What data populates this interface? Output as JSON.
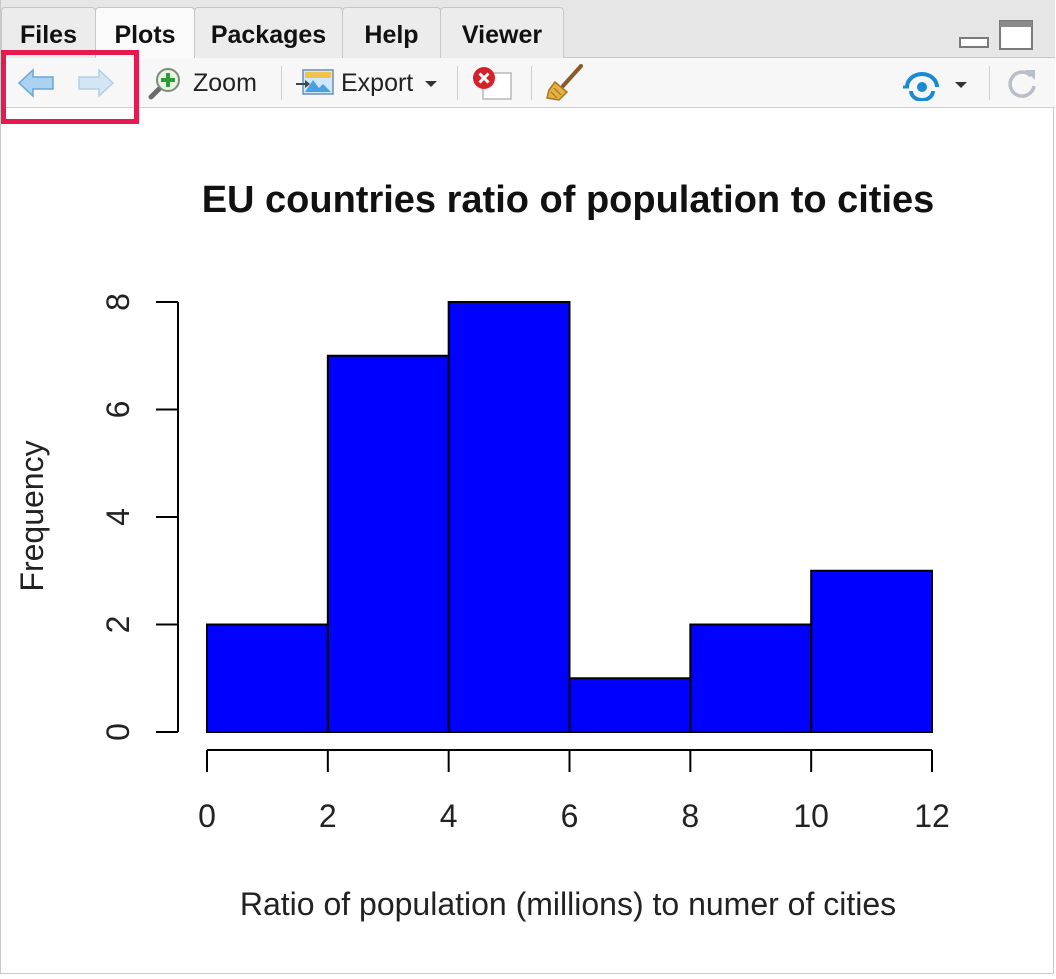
{
  "tabs": [
    {
      "label": "Files",
      "active": false
    },
    {
      "label": "Plots",
      "active": true
    },
    {
      "label": "Packages",
      "active": false
    },
    {
      "label": "Help",
      "active": false
    },
    {
      "label": "Viewer",
      "active": false
    }
  ],
  "toolbar": {
    "zoom_label": "Zoom",
    "export_label": "Export",
    "icons": [
      "back-arrow-icon",
      "forward-arrow-icon",
      "zoom-icon",
      "export-icon",
      "remove-plot-icon",
      "broom-icon",
      "publish-icon",
      "refresh-icon"
    ]
  },
  "colors": {
    "highlight": "#e8194f",
    "bar_fill": "#0000ff",
    "accent": "#1a8ad4"
  },
  "chart_data": {
    "type": "bar",
    "title": "EU countries ratio of population to cities",
    "xlabel": "Ratio of population (millions) to numer of cities",
    "ylabel": "Frequency",
    "bins": [
      {
        "from": 0,
        "to": 2,
        "count": 2
      },
      {
        "from": 2,
        "to": 4,
        "count": 7
      },
      {
        "from": 4,
        "to": 6,
        "count": 8
      },
      {
        "from": 6,
        "to": 8,
        "count": 1
      },
      {
        "from": 8,
        "to": 10,
        "count": 2
      },
      {
        "from": 10,
        "to": 12,
        "count": 3
      }
    ],
    "xticks": [
      "0",
      "2",
      "4",
      "6",
      "8",
      "10",
      "12"
    ],
    "yticks": [
      "0",
      "2",
      "4",
      "6",
      "8"
    ],
    "xlim": [
      0,
      12
    ],
    "ylim": [
      0,
      8
    ],
    "grid": false,
    "legend": false
  }
}
